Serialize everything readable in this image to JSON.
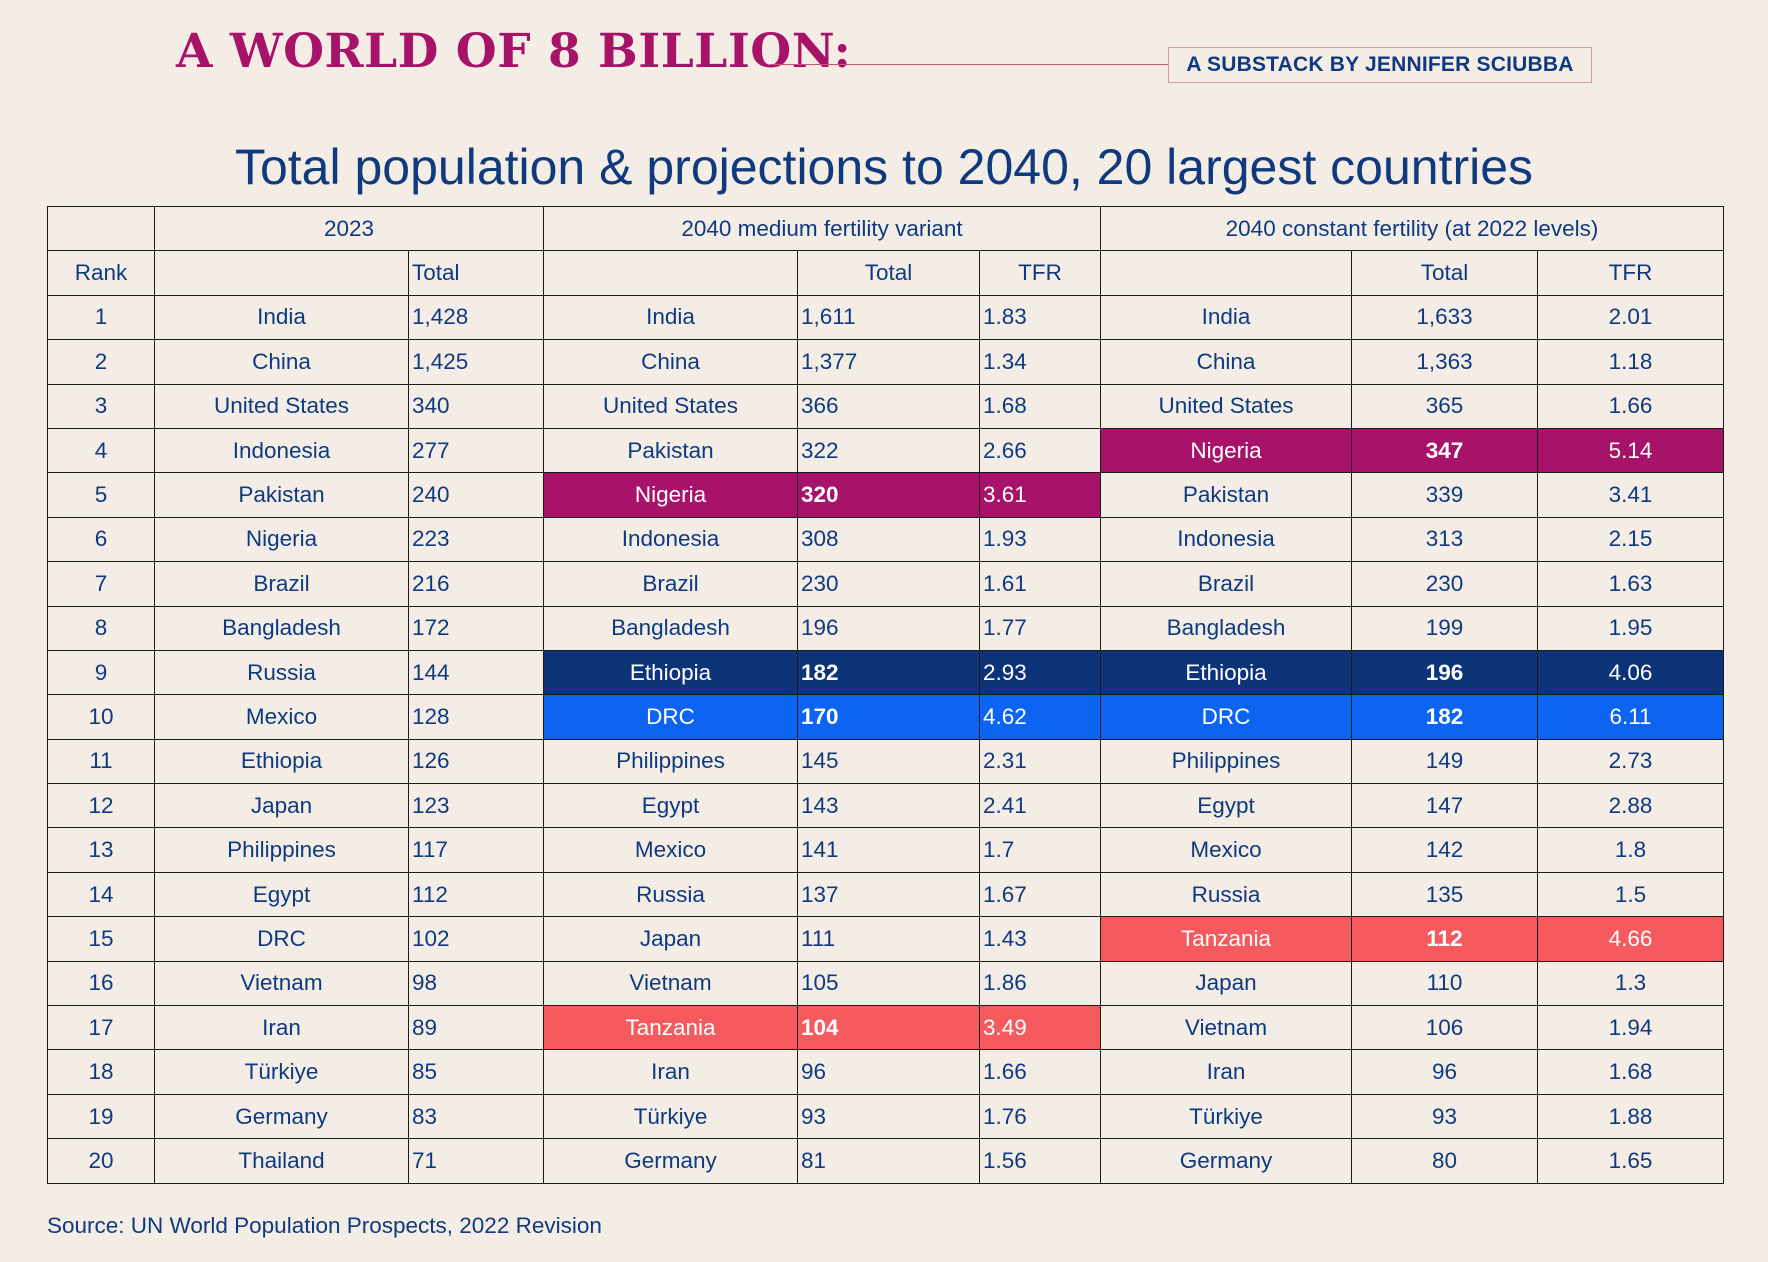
{
  "header": {
    "brand": "A WORLD OF 8 BILLION:",
    "substack": "A SUBSTACK BY JENNIFER SCIUBBA"
  },
  "colors": {
    "background": "#f3ede6",
    "text": "#0f3a80",
    "brand": "#a8136a",
    "highlight_nigeria": "#a8136a",
    "highlight_ethiopia": "#0d3478",
    "highlight_drc": "#0d64f2",
    "highlight_tanzania": "#f45a5e"
  },
  "chart_data": {
    "type": "table",
    "title": "Total population & projections to 2040, 20 largest countries",
    "group_headers": [
      "",
      "2023",
      "2040 medium fertility variant",
      "2040 constant fertility (at 2022 levels)"
    ],
    "column_headers": [
      "Rank",
      "",
      "Total",
      "",
      "Total",
      "TFR",
      "",
      "Total",
      "TFR"
    ],
    "rows": [
      [
        "1",
        "India",
        "1,428",
        "India",
        "1,611",
        "1.83",
        "India",
        "1,633",
        "2.01"
      ],
      [
        "2",
        "China",
        "1,425",
        "China",
        "1,377",
        "1.34",
        "China",
        "1,363",
        "1.18"
      ],
      [
        "3",
        "United States",
        "340",
        "United States",
        "366",
        "1.68",
        "United States",
        "365",
        "1.66"
      ],
      [
        "4",
        "Indonesia",
        "277",
        "Pakistan",
        "322",
        "2.66",
        "Nigeria",
        "347",
        "5.14"
      ],
      [
        "5",
        "Pakistan",
        "240",
        "Nigeria",
        "320",
        "3.61",
        "Pakistan",
        "339",
        "3.41"
      ],
      [
        "6",
        "Nigeria",
        "223",
        "Indonesia",
        "308",
        "1.93",
        "Indonesia",
        "313",
        "2.15"
      ],
      [
        "7",
        "Brazil",
        "216",
        "Brazil",
        "230",
        "1.61",
        "Brazil",
        "230",
        "1.63"
      ],
      [
        "8",
        "Bangladesh",
        "172",
        "Bangladesh",
        "196",
        "1.77",
        "Bangladesh",
        "199",
        "1.95"
      ],
      [
        "9",
        "Russia",
        "144",
        "Ethiopia",
        "182",
        "2.93",
        "Ethiopia",
        "196",
        "4.06"
      ],
      [
        "10",
        "Mexico",
        "128",
        "DRC",
        "170",
        "4.62",
        "DRC",
        "182",
        "6.11"
      ],
      [
        "11",
        "Ethiopia",
        "126",
        "Philippines",
        "145",
        "2.31",
        "Philippines",
        "149",
        "2.73"
      ],
      [
        "12",
        "Japan",
        "123",
        "Egypt",
        "143",
        "2.41",
        "Egypt",
        "147",
        "2.88"
      ],
      [
        "13",
        "Philippines",
        "117",
        "Mexico",
        "141",
        "1.7",
        "Mexico",
        "142",
        "1.8"
      ],
      [
        "14",
        "Egypt",
        "112",
        "Russia",
        "137",
        "1.67",
        "Russia",
        "135",
        "1.5"
      ],
      [
        "15",
        "DRC",
        "102",
        "Japan",
        "111",
        "1.43",
        "Tanzania",
        "112",
        "4.66"
      ],
      [
        "16",
        "Vietnam",
        "98",
        "Vietnam",
        "105",
        "1.86",
        "Japan",
        "110",
        "1.3"
      ],
      [
        "17",
        "Iran",
        "89",
        "Tanzania",
        "104",
        "3.49",
        "Vietnam",
        "106",
        "1.94"
      ],
      [
        "18",
        "Türkiye",
        "85",
        "Iran",
        "96",
        "1.66",
        "Iran",
        "96",
        "1.68"
      ],
      [
        "19",
        "Germany",
        "83",
        "Türkiye",
        "93",
        "1.76",
        "Türkiye",
        "93",
        "1.88"
      ],
      [
        "20",
        "Thailand",
        "71",
        "Germany",
        "81",
        "1.56",
        "Germany",
        "80",
        "1.65"
      ]
    ],
    "highlights": [
      {
        "row": 4,
        "group": "2040 constant fertility (at 2022 levels)",
        "country": "Nigeria",
        "color": "#a8136a"
      },
      {
        "row": 5,
        "group": "2040 medium fertility variant",
        "country": "Nigeria",
        "color": "#a8136a"
      },
      {
        "row": 9,
        "group": "2040 medium fertility variant",
        "country": "Ethiopia",
        "color": "#0d3478"
      },
      {
        "row": 9,
        "group": "2040 constant fertility (at 2022 levels)",
        "country": "Ethiopia",
        "color": "#0d3478"
      },
      {
        "row": 10,
        "group": "2040 medium fertility variant",
        "country": "DRC",
        "color": "#0d64f2"
      },
      {
        "row": 10,
        "group": "2040 constant fertility (at 2022 levels)",
        "country": "DRC",
        "color": "#0d64f2"
      },
      {
        "row": 15,
        "group": "2040 constant fertility (at 2022 levels)",
        "country": "Tanzania",
        "color": "#f45a5e"
      },
      {
        "row": 17,
        "group": "2040 medium fertility variant",
        "country": "Tanzania",
        "color": "#f45a5e"
      }
    ],
    "source": "Source: UN World Population Prospects, 2022 Revision"
  }
}
